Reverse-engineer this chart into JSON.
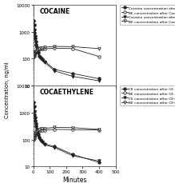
{
  "title_top": "COCAINE",
  "title_bottom": "COCAETHYLENE",
  "xlabel": "Minutes",
  "ylabel": "Concentration, ng/ml",
  "background_color": "#ffffff",
  "cocaine_panel": {
    "series1": {
      "label": "Cocaine concentration after Cocaine Alone",
      "x": [
        2,
        5,
        7,
        9,
        11,
        13,
        15,
        18,
        21,
        25,
        30,
        37,
        45,
        55,
        70,
        130,
        240,
        400
      ],
      "y": [
        2500,
        1800,
        1200,
        900,
        700,
        550,
        430,
        330,
        260,
        200,
        160,
        130,
        110,
        95,
        80,
        40,
        28,
        18
      ],
      "marker": "o",
      "filled": true,
      "color": "#222222",
      "linestyle": "-"
    },
    "series2": {
      "label": "BE concentration after Cocaine Alone",
      "x": [
        2,
        5,
        7,
        9,
        11,
        13,
        15,
        18,
        21,
        25,
        30,
        37,
        45,
        55,
        70,
        130,
        240,
        400
      ],
      "y": [
        120,
        130,
        145,
        155,
        165,
        175,
        180,
        190,
        200,
        210,
        215,
        220,
        225,
        228,
        230,
        245,
        235,
        120
      ],
      "marker": "o",
      "filled": false,
      "color": "#222222",
      "linestyle": "-"
    },
    "series3": {
      "label": "Cocaine concentration after Cocaine+EtOH",
      "x": [
        2,
        5,
        7,
        9,
        11,
        13,
        15,
        18,
        21,
        25,
        30,
        37,
        45,
        55,
        70,
        130,
        240,
        400
      ],
      "y": [
        2300,
        1700,
        1100,
        850,
        650,
        510,
        400,
        310,
        245,
        190,
        150,
        120,
        100,
        88,
        72,
        35,
        22,
        15
      ],
      "marker": "v",
      "filled": true,
      "color": "#222222",
      "linestyle": "-"
    },
    "series4": {
      "label": "BE concentration after Cocaine+EtOH",
      "x": [
        2,
        5,
        7,
        9,
        11,
        13,
        15,
        18,
        21,
        25,
        30,
        37,
        45,
        55,
        70,
        130,
        240,
        400
      ],
      "y": [
        110,
        125,
        140,
        152,
        163,
        173,
        180,
        192,
        205,
        218,
        228,
        238,
        248,
        255,
        262,
        285,
        278,
        235
      ],
      "marker": "v",
      "filled": false,
      "color": "#222222",
      "linestyle": "-"
    }
  },
  "cocaethylene_panel": {
    "series1": {
      "label": "CE concentration after CE alone",
      "x": [
        2,
        5,
        7,
        9,
        11,
        13,
        15,
        18,
        21,
        25,
        30,
        37,
        45,
        55,
        70,
        130,
        240,
        400
      ],
      "y": [
        2400,
        1700,
        1100,
        830,
        640,
        500,
        390,
        300,
        240,
        185,
        148,
        118,
        98,
        83,
        68,
        55,
        28,
        14
      ],
      "marker": "o",
      "filled": true,
      "color": "#222222",
      "linestyle": "-"
    },
    "series2": {
      "label": "BE concentration after CE Alone",
      "x": [
        2,
        5,
        7,
        9,
        11,
        13,
        15,
        18,
        21,
        25,
        30,
        37,
        45,
        55,
        70,
        130,
        240,
        400
      ],
      "y": [
        95,
        110,
        125,
        138,
        148,
        158,
        165,
        175,
        185,
        196,
        205,
        212,
        218,
        222,
        226,
        238,
        232,
        225
      ],
      "marker": "o",
      "filled": false,
      "color": "#222222",
      "linestyle": "-"
    },
    "series3": {
      "label": "CE concentration after CE+EtOH",
      "x": [
        2,
        5,
        7,
        9,
        11,
        13,
        15,
        18,
        21,
        25,
        30,
        37,
        45,
        55,
        70,
        130,
        240,
        400
      ],
      "y": [
        2200,
        1600,
        1050,
        800,
        615,
        480,
        375,
        290,
        230,
        178,
        142,
        112,
        93,
        79,
        64,
        50,
        25,
        16
      ],
      "marker": "v",
      "filled": true,
      "color": "#222222",
      "linestyle": "-"
    },
    "series4": {
      "label": "BE concentration after CE+EtOH",
      "x": [
        2,
        5,
        7,
        9,
        11,
        13,
        15,
        18,
        21,
        25,
        30,
        37,
        45,
        55,
        70,
        130,
        240,
        400
      ],
      "y": [
        100,
        118,
        133,
        146,
        157,
        167,
        175,
        188,
        200,
        214,
        225,
        235,
        245,
        252,
        260,
        280,
        275,
        238
      ],
      "marker": "v",
      "filled": false,
      "color": "#222222",
      "linestyle": "-"
    }
  },
  "legend_cocaine": [
    {
      "label": "Cocaine concentration after Cocaine Alone",
      "marker": "o",
      "filled": true
    },
    {
      "label": "BE concentration after Cocaine Alone",
      "marker": "o",
      "filled": false
    },
    {
      "label": "Cocaine concentration after Cocaine+EtOH",
      "marker": "v",
      "filled": true
    },
    {
      "label": "BE concentration after Cocaine+EtOH",
      "marker": "v",
      "filled": false
    }
  ],
  "legend_coca": [
    {
      "label": "CE concentration after CE alone",
      "marker": "o",
      "filled": true
    },
    {
      "label": "BE concentration after CE Alone",
      "marker": "o",
      "filled": false
    },
    {
      "label": "CE concentration after CE+EtOH",
      "marker": "v",
      "filled": true
    },
    {
      "label": "BE concentration after CE+EtOH",
      "marker": "v",
      "filled": false
    }
  ],
  "ylim": [
    10,
    10000
  ],
  "xlim": [
    0,
    500
  ],
  "yticks": [
    10,
    100,
    1000,
    10000
  ],
  "xticks": [
    0,
    100,
    200,
    300,
    400,
    500
  ]
}
